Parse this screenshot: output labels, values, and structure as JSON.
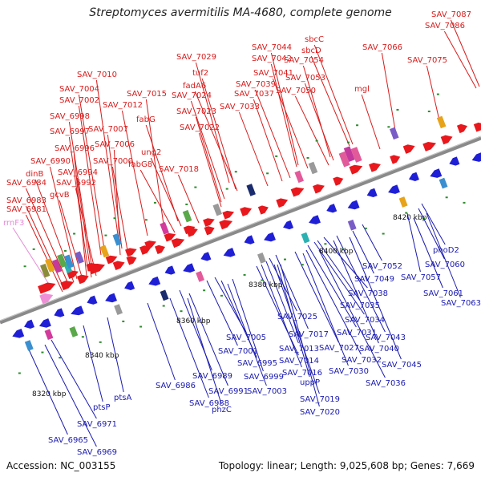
{
  "title": "Streptomyces avermitilis MA-4680, complete genome",
  "footer": {
    "accession": "Accession: NC_003155",
    "summary": "Topology: linear; Length: 9,025,608 bp; Genes: 7,669"
  },
  "colors": {
    "forward": "#e8181c",
    "reverse": "#1f1fd6",
    "rrna": "#ef8fd6",
    "forward_label": "#d81b1b",
    "reverse_label": "#1a1ab0",
    "rrna_label": "#e58ad6",
    "backbone": "#8a8a8a"
  },
  "scale": {
    "ticks": [
      "8320 kbp",
      "8340 kbp",
      "8360 kbp",
      "8380 kbp",
      "8400 kbp",
      "8420 kbp"
    ]
  },
  "rrna_labels": [
    "rrnF3"
  ],
  "forward_labels": [
    "SAV_7087",
    "SAV_7086",
    "sbcC",
    "sbcD",
    "SAV_7044",
    "SAV_7066",
    "SAV_7029",
    "SAV_7042",
    "SAV_7054",
    "SAV_7075",
    "SAV_7041",
    "tuf2",
    "SAV_7053",
    "SAV_7010",
    "SAV_7039",
    "fadA6",
    "SAV_7037",
    "SAV_7050",
    "mgl",
    "SAV_7004",
    "SAV_7015",
    "SAV_7024",
    "SAV_7002",
    "SAV_7012",
    "SAV_7033",
    "SAV_6998",
    "fabG",
    "SAV_7023",
    "SAV_7007",
    "SAV_6997",
    "SAV_7022",
    "SAV_7006",
    "ung2",
    "SAV_6996",
    "SAV_7000",
    "fabG8",
    "SAV_6990",
    "SAV_7018",
    "SAV_6994",
    "dinB",
    "SAV_6984",
    "SAV_6992",
    "gcvB",
    "SAV_6983",
    "SAV_6981"
  ],
  "reverse_labels": [
    "phoD2",
    "SAV_7052",
    "SAV_7060",
    "SAV_7049",
    "SAV_7057",
    "SAV_7061",
    "SAV_7063",
    "SAV_7038",
    "SAV_7035",
    "SAV_7025",
    "SAV_7034",
    "SAV_7031",
    "SAV_7043",
    "SAV_7005",
    "SAV_7017",
    "SAV_7040",
    "SAV_7001",
    "SAV_7013",
    "SAV_7027",
    "SAV_6995",
    "SAV_7014",
    "SAV_7032",
    "SAV_6999",
    "SAV_7016",
    "SAV_7030",
    "SAV_7045",
    "uppP",
    "SAV_6989",
    "SAV_7036",
    "SAV_6986",
    "SAV_6991",
    "SAV_7003",
    "ptsA",
    "SAV_6988",
    "SAV_7019",
    "phzC",
    "ptsP",
    "SAV_7020",
    "SAV_6971",
    "SAV_6965",
    "SAV_6969"
  ]
}
